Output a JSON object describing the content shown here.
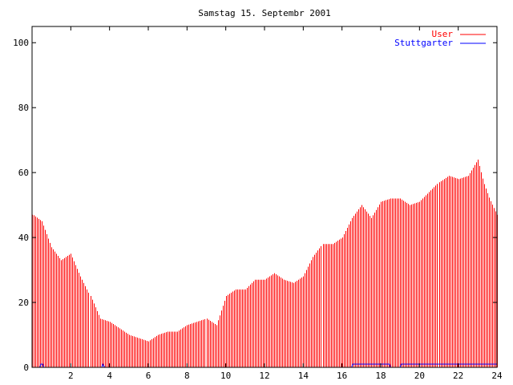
{
  "chart_data": {
    "type": "bar",
    "title": "Samstag 15. Septembr 2001",
    "xlabel": "",
    "ylabel": "",
    "xlim": [
      0,
      24
    ],
    "ylim": [
      0,
      105
    ],
    "x_ticks": [
      2,
      4,
      6,
      8,
      10,
      12,
      14,
      16,
      18,
      20,
      22,
      24
    ],
    "y_ticks": [
      0,
      20,
      40,
      60,
      80,
      100
    ],
    "grid": false,
    "legend_position": "top-right",
    "series": [
      {
        "name": "User",
        "color": "#ff0000",
        "style": "impulses",
        "points": [
          [
            0.05,
            47
          ],
          [
            0.5,
            45
          ],
          [
            1.0,
            37
          ],
          [
            1.5,
            33
          ],
          [
            2.0,
            35
          ],
          [
            2.5,
            28
          ],
          [
            3.0,
            22
          ],
          [
            3.5,
            15
          ],
          [
            4.0,
            14
          ],
          [
            4.5,
            12
          ],
          [
            5.0,
            10
          ],
          [
            5.5,
            9
          ],
          [
            6.0,
            8
          ],
          [
            6.5,
            10
          ],
          [
            7.0,
            11
          ],
          [
            7.5,
            11
          ],
          [
            8.0,
            13
          ],
          [
            8.5,
            14
          ],
          [
            9.0,
            15
          ],
          [
            9.5,
            13
          ],
          [
            10.0,
            22
          ],
          [
            10.5,
            24
          ],
          [
            11.0,
            24
          ],
          [
            11.5,
            27
          ],
          [
            12.0,
            27
          ],
          [
            12.5,
            29
          ],
          [
            13.0,
            27
          ],
          [
            13.5,
            26
          ],
          [
            14.0,
            28
          ],
          [
            14.5,
            34
          ],
          [
            15.0,
            38
          ],
          [
            15.5,
            38
          ],
          [
            16.0,
            40
          ],
          [
            16.5,
            46
          ],
          [
            17.0,
            50
          ],
          [
            17.5,
            46
          ],
          [
            18.0,
            51
          ],
          [
            18.5,
            52
          ],
          [
            19.0,
            52
          ],
          [
            19.5,
            50
          ],
          [
            20.0,
            51
          ],
          [
            20.5,
            54
          ],
          [
            21.0,
            57
          ],
          [
            21.5,
            59
          ],
          [
            22.0,
            58
          ],
          [
            22.5,
            59
          ],
          [
            22.8,
            62
          ],
          [
            23.0,
            64
          ],
          [
            23.3,
            57
          ],
          [
            23.6,
            52
          ],
          [
            24.0,
            47
          ]
        ]
      },
      {
        "name": "Stuttgarter",
        "color": "#0000ff",
        "style": "line",
        "points": [
          [
            0,
            0
          ],
          [
            0.4,
            0
          ],
          [
            0.45,
            1
          ],
          [
            0.55,
            1
          ],
          [
            0.6,
            0
          ],
          [
            3.6,
            0
          ],
          [
            3.65,
            1
          ],
          [
            3.75,
            0
          ],
          [
            16.5,
            0
          ],
          [
            16.55,
            1
          ],
          [
            18.45,
            1
          ],
          [
            18.5,
            0
          ],
          [
            19.0,
            0
          ],
          [
            19.05,
            1
          ],
          [
            24,
            1
          ]
        ]
      }
    ]
  }
}
